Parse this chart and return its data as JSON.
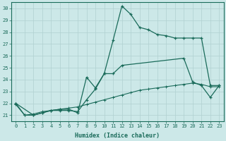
{
  "xlabel": "Humidex (Indice chaleur)",
  "xlim": [
    -0.5,
    23.5
  ],
  "ylim": [
    20.5,
    30.5
  ],
  "xticks": [
    0,
    1,
    2,
    3,
    4,
    5,
    6,
    7,
    8,
    9,
    10,
    11,
    12,
    13,
    14,
    15,
    16,
    17,
    18,
    19,
    20,
    21,
    22,
    23
  ],
  "yticks": [
    21,
    22,
    23,
    24,
    25,
    26,
    27,
    28,
    29,
    30
  ],
  "background_color": "#cce8e8",
  "grid_color": "#b0d0d0",
  "line_color": "#1a6b5a",
  "line1_x": [
    0,
    1,
    2,
    3,
    4,
    5,
    6,
    7,
    8,
    9,
    10,
    11,
    12,
    13,
    14,
    15,
    16,
    17,
    18,
    19,
    20,
    21,
    22,
    23
  ],
  "line1_y": [
    22,
    21,
    21,
    21.2,
    21.4,
    21.4,
    21.4,
    21.3,
    22.3,
    23.2,
    24.5,
    27.3,
    30.2,
    29.5,
    28.4,
    28.2,
    27.8,
    27.7,
    27.5,
    27.5,
    27.5,
    27.5,
    23.5,
    23.5
  ],
  "line2_x": [
    0,
    2,
    3,
    4,
    5,
    6,
    7,
    8,
    9,
    10,
    11,
    12,
    19,
    20,
    21,
    22,
    23
  ],
  "line2_y": [
    22,
    21,
    21.2,
    21.4,
    21.5,
    21.5,
    21.2,
    24.2,
    23.3,
    24.5,
    24.5,
    25.2,
    25.8,
    23.8,
    23.5,
    22.5,
    23.5
  ],
  "line3_x": [
    0,
    1,
    2,
    3,
    4,
    5,
    6,
    7,
    8,
    9,
    10,
    11,
    12,
    13,
    14,
    15,
    16,
    17,
    18,
    19,
    20,
    21,
    22,
    23
  ],
  "line3_y": [
    21.9,
    21.0,
    21.1,
    21.3,
    21.4,
    21.5,
    21.6,
    21.7,
    21.9,
    22.1,
    22.3,
    22.5,
    22.7,
    22.9,
    23.1,
    23.2,
    23.3,
    23.4,
    23.5,
    23.6,
    23.7,
    23.6,
    23.4,
    23.4
  ]
}
